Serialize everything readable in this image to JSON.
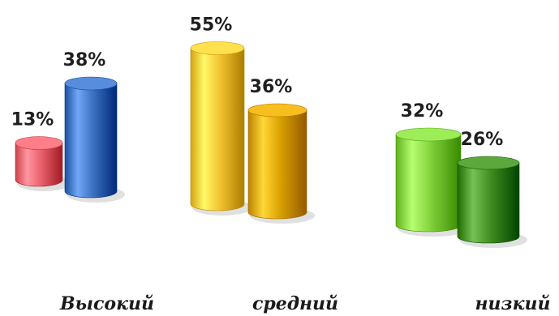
{
  "chart_data": {
    "type": "bar",
    "categories": [
      "Высокий",
      "средний",
      "низкий"
    ],
    "bars": [
      {
        "category": "Высокий",
        "value": 13,
        "label": "13%",
        "color": "#e8606a"
      },
      {
        "category": "Высокий",
        "value": 38,
        "label": "38%",
        "color": "#3a6fbf"
      },
      {
        "category": "средний",
        "value": 55,
        "label": "55%",
        "color": "#f2c230"
      },
      {
        "category": "средний",
        "value": 36,
        "label": "36%",
        "color": "#d9a000"
      },
      {
        "category": "низкий",
        "value": 32,
        "label": "32%",
        "color": "#7fcf3a"
      },
      {
        "category": "низкий",
        "value": 26,
        "label": "26%",
        "color": "#3f8a1e"
      }
    ],
    "unit": "%",
    "ylim": [
      0,
      60
    ],
    "grid": false,
    "legend": "none",
    "style": "3d-cylinder"
  }
}
